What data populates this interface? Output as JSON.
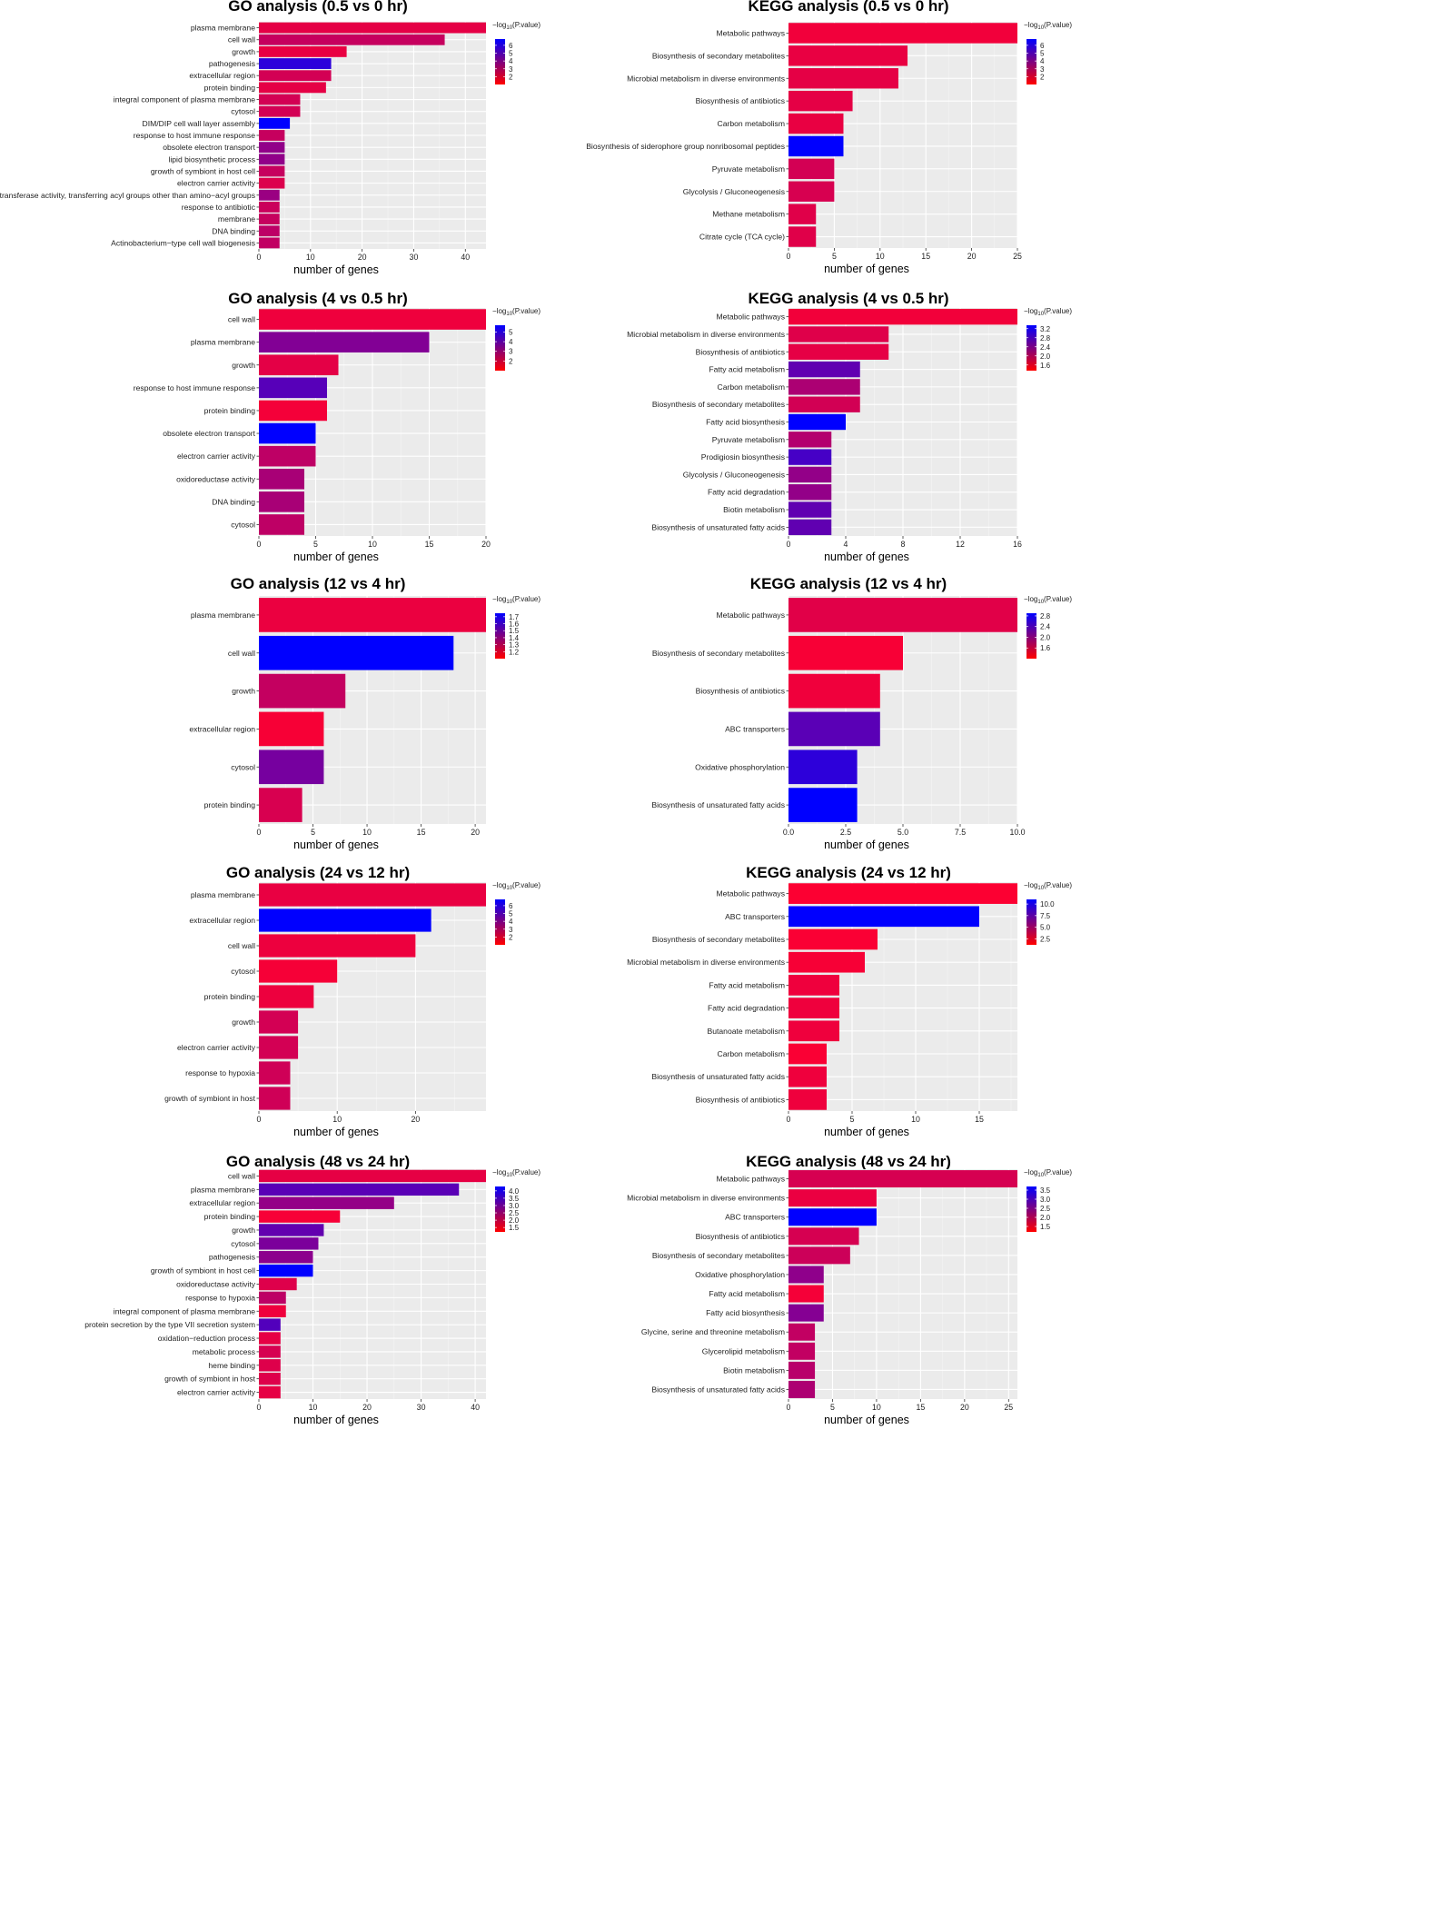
{
  "chart_data": [
    {
      "type": "bar",
      "orientation": "horizontal",
      "title": "GO analysis (0.5 vs 0 hr)",
      "xlabel": "number of genes",
      "xlim": [
        0,
        44
      ],
      "xticks": [
        0,
        10,
        20,
        30,
        40
      ],
      "legend": {
        "title": "−log10(P.value)",
        "range": [
          1,
          6.8
        ],
        "ticks": [
          "6",
          "5",
          "4",
          "3",
          "2"
        ],
        "tick_values": [
          6,
          5,
          4,
          3,
          2
        ],
        "position": "right"
      },
      "categories": [
        "plasma membrane",
        "cell wall",
        "growth",
        "pathogenesis",
        "extracellular region",
        "protein binding",
        "integral component of plasma membrane",
        "cytosol",
        "DIM/DIP cell wall layer assembly",
        "response to host immune response",
        "obsolete electron transport",
        "lipid biosynthetic process",
        "growth of symbiont in host cell",
        "electron carrier activity",
        "transferase activity, transferring acyl groups other than amino−acyl groups",
        "response to antibiotic",
        "membrane",
        "DNA binding",
        "Actinobacterium−type cell wall biogenesis"
      ],
      "values": [
        44,
        36,
        17,
        14,
        14,
        13,
        8,
        8,
        6,
        5,
        5,
        5,
        5,
        5,
        4,
        4,
        4,
        4,
        4
      ],
      "color_values": [
        1.6,
        2.3,
        1.5,
        5.8,
        2.0,
        1.6,
        2.0,
        2.0,
        6.8,
        2.3,
        3.5,
        3.5,
        2.3,
        1.8,
        3.3,
        2.2,
        2.3,
        2.5,
        2.4
      ]
    },
    {
      "type": "bar",
      "orientation": "horizontal",
      "title": "KEGG analysis (0.5 vs 0 hr)",
      "xlabel": "number of genes",
      "xlim": [
        0,
        25
      ],
      "xticks": [
        0,
        5,
        10,
        15,
        20,
        25
      ],
      "legend": {
        "title": "−log10(P.value)",
        "range": [
          1,
          6.8
        ],
        "ticks": [
          "6",
          "5",
          "4",
          "3",
          "2"
        ],
        "tick_values": [
          6,
          5,
          4,
          3,
          2
        ],
        "position": "right"
      },
      "categories": [
        "Metabolic pathways",
        "Biosynthesis of secondary metabolites",
        "Microbial metabolism in diverse environments",
        "Biosynthesis of antibiotics",
        "Carbon metabolism",
        "Biosynthesis of siderophore group nonribosomal peptides",
        "Pyruvate metabolism",
        "Glycolysis / Gluconeogenesis",
        "Methane metabolism",
        "Citrate cycle (TCA cycle)"
      ],
      "values": [
        25,
        13,
        12,
        7,
        6,
        6,
        5,
        5,
        3,
        3
      ],
      "color_values": [
        1.3,
        1.5,
        1.6,
        1.6,
        1.5,
        6.8,
        2.0,
        1.9,
        1.7,
        1.7
      ]
    },
    {
      "type": "bar",
      "orientation": "horizontal",
      "title": "GO analysis (4 vs 0.5 hr)",
      "xlabel": "number of genes",
      "xlim": [
        0,
        20
      ],
      "xticks": [
        0,
        5,
        10,
        15,
        20
      ],
      "legend": {
        "title": "−log10(P.value)",
        "range": [
          1,
          5.7
        ],
        "ticks": [
          "5",
          "4",
          "3",
          "2"
        ],
        "tick_values": [
          5,
          4,
          3,
          2
        ],
        "position": "right"
      },
      "categories": [
        "cell wall",
        "plasma membrane",
        "growth",
        "response to host immune response",
        "protein binding",
        "obsolete electron transport",
        "electron carrier activity",
        "oxidoreductase activity",
        "DNA binding",
        "cytosol"
      ],
      "values": [
        20,
        15,
        7,
        6,
        6,
        5,
        5,
        4,
        4,
        4
      ],
      "color_values": [
        1.3,
        3.3,
        1.5,
        4.1,
        1.2,
        5.7,
        2.2,
        2.6,
        2.6,
        2.2
      ]
    },
    {
      "type": "bar",
      "orientation": "horizontal",
      "title": "KEGG analysis (4 vs 0.5 hr)",
      "xlabel": "number of genes",
      "xlim": [
        0,
        16
      ],
      "xticks": [
        0,
        4,
        8,
        12,
        16
      ],
      "legend": {
        "title": "−log10(P.value)",
        "range": [
          1.35,
          3.35
        ],
        "ticks": [
          "3.2",
          "2.8",
          "2.4",
          "2.0",
          "1.6"
        ],
        "tick_values": [
          3.2,
          2.8,
          2.4,
          2.0,
          1.6
        ],
        "position": "right"
      },
      "categories": [
        "Metabolic pathways",
        "Microbial metabolism in diverse environments",
        "Biosynthesis of antibiotics",
        "Fatty acid metabolism",
        "Carbon metabolism",
        "Biosynthesis of secondary metabolites",
        "Fatty acid biosynthesis",
        "Pyruvate metabolism",
        "Prodigiosin biosynthesis",
        "Glycolysis / Gluconeogenesis",
        "Fatty acid degradation",
        "Biotin metabolism",
        "Biosynthesis of unsaturated fatty acids"
      ],
      "values": [
        16,
        7,
        7,
        5,
        5,
        5,
        4,
        3,
        3,
        3,
        3,
        3,
        3
      ],
      "color_values": [
        1.45,
        1.6,
        1.55,
        2.6,
        2.0,
        1.7,
        3.35,
        1.95,
        2.8,
        2.2,
        2.2,
        2.6,
        2.6
      ]
    },
    {
      "type": "bar",
      "orientation": "horizontal",
      "title": "GO analysis (12 vs 4 hr)",
      "xlabel": "number of genes",
      "xlim": [
        0,
        21
      ],
      "xticks": [
        0,
        5,
        10,
        15,
        20
      ],
      "legend": {
        "title": "−log10(P.value)",
        "range": [
          1.1,
          1.75
        ],
        "ticks": [
          "1.7",
          "1.6",
          "1.5",
          "1.4",
          "1.3",
          "1.2"
        ],
        "tick_values": [
          1.7,
          1.6,
          1.5,
          1.4,
          1.3,
          1.2
        ],
        "position": "right"
      },
      "categories": [
        "plasma membrane",
        "cell wall",
        "growth",
        "extracellular region",
        "cytosol",
        "protein binding"
      ],
      "values": [
        21,
        18,
        8,
        6,
        6,
        4
      ],
      "color_values": [
        1.15,
        1.75,
        1.25,
        1.12,
        1.45,
        1.2
      ]
    },
    {
      "type": "bar",
      "orientation": "horizontal",
      "title": "KEGG analysis (12 vs 4 hr)",
      "xlabel": "number of genes",
      "xlim": [
        0,
        10
      ],
      "xticks": [
        0,
        2.5,
        5,
        7.5,
        10
      ],
      "xtick_labels": [
        "0.0",
        "2.5",
        "5.0",
        "7.5",
        "10.0"
      ],
      "legend": {
        "title": "−log10(P.value)",
        "range": [
          1.2,
          2.9
        ],
        "ticks": [
          "2.8",
          "2.4",
          "2.0",
          "1.6"
        ],
        "tick_values": [
          2.8,
          2.4,
          2.0,
          1.6
        ],
        "position": "right"
      },
      "categories": [
        "Metabolic pathways",
        "Biosynthesis of secondary metabolites",
        "Biosynthesis of antibiotics",
        "ABC transporters",
        "Oxidative phosphorylation",
        "Biosynthesis of unsaturated fatty acids"
      ],
      "values": [
        10,
        5,
        4,
        4,
        3,
        3
      ],
      "color_values": [
        1.4,
        1.25,
        1.3,
        2.3,
        2.6,
        2.9
      ]
    },
    {
      "type": "bar",
      "orientation": "horizontal",
      "title": "GO analysis (24 vs 12 hr)",
      "xlabel": "number of genes",
      "xlim": [
        0,
        29
      ],
      "xticks": [
        0,
        10,
        20
      ],
      "legend": {
        "title": "−log10(P.value)",
        "range": [
          1,
          6.8
        ],
        "ticks": [
          "6",
          "5",
          "4",
          "3",
          "2"
        ],
        "tick_values": [
          6,
          5,
          4,
          3,
          2
        ],
        "position": "right"
      },
      "categories": [
        "plasma membrane",
        "extracellular region",
        "cell wall",
        "cytosol",
        "protein binding",
        "growth",
        "electron carrier activity",
        "response to hypoxia",
        "growth of symbiont in host"
      ],
      "values": [
        29,
        22,
        20,
        10,
        7,
        5,
        5,
        4,
        4
      ],
      "color_values": [
        1.5,
        6.8,
        1.4,
        1.2,
        1.4,
        2.0,
        2.0,
        2.1,
        2.1
      ]
    },
    {
      "type": "bar",
      "orientation": "horizontal",
      "title": "KEGG analysis (24 vs 12 hr)",
      "xlabel": "number of genes",
      "xlim": [
        0,
        18
      ],
      "xticks": [
        0,
        5,
        10,
        15
      ],
      "legend": {
        "title": "−log10(P.value)",
        "range": [
          1.2,
          11
        ],
        "ticks": [
          "10.0",
          "7.5",
          "5.0",
          "2.5"
        ],
        "tick_values": [
          10,
          7.5,
          5,
          2.5
        ],
        "position": "right"
      },
      "categories": [
        "Metabolic pathways",
        "ABC transporters",
        "Biosynthesis of secondary metabolites",
        "Microbial metabolism in diverse environments",
        "Fatty acid metabolism",
        "Fatty acid degradation",
        "Butanoate metabolism",
        "Carbon metabolism",
        "Biosynthesis of unsaturated fatty acids",
        "Biosynthesis of antibiotics"
      ],
      "values": [
        18,
        15,
        7,
        6,
        4,
        4,
        4,
        3,
        3,
        3
      ],
      "color_values": [
        1.3,
        11,
        1.4,
        1.5,
        1.8,
        1.8,
        1.8,
        1.4,
        1.8,
        1.8
      ]
    },
    {
      "type": "bar",
      "orientation": "horizontal",
      "title": "GO analysis (48 vs 24 hr)",
      "xlabel": "number of genes",
      "xlim": [
        0,
        42
      ],
      "xticks": [
        0,
        10,
        20,
        30,
        40
      ],
      "legend": {
        "title": "−log10(P.value)",
        "range": [
          1.2,
          4.3
        ],
        "ticks": [
          "4.0",
          "3.5",
          "3.0",
          "2.5",
          "2.0",
          "1.5"
        ],
        "tick_values": [
          4,
          3.5,
          3,
          2.5,
          2,
          1.5
        ],
        "position": "right"
      },
      "categories": [
        "cell wall",
        "plasma membrane",
        "extracellular region",
        "protein binding",
        "growth",
        "cytosol",
        "pathogenesis",
        "growth of symbiont in host cell",
        "oxidoreductase activity",
        "response to hypoxia",
        "integral component of plasma membrane",
        "protein secretion by the type VII secretion system",
        "oxidation−reduction process",
        "metabolic process",
        "heme binding",
        "growth of symbiont in host",
        "electron carrier activity"
      ],
      "values": [
        42,
        37,
        25,
        15,
        12,
        11,
        10,
        10,
        7,
        5,
        5,
        4,
        4,
        4,
        4,
        4,
        4
      ],
      "color_values": [
        1.5,
        3.2,
        2.5,
        1.3,
        3.1,
        2.8,
        2.6,
        4.3,
        1.6,
        2.0,
        1.4,
        3.3,
        1.5,
        1.7,
        1.6,
        1.6,
        1.5
      ]
    },
    {
      "type": "bar",
      "orientation": "horizontal",
      "title": "KEGG analysis (48 vs 24 hr)",
      "xlabel": "number of genes",
      "xlim": [
        0,
        26
      ],
      "xticks": [
        0,
        5,
        10,
        15,
        20,
        25
      ],
      "legend": {
        "title": "−log10(P.value)",
        "range": [
          1.2,
          3.7
        ],
        "ticks": [
          "3.5",
          "3.0",
          "2.5",
          "2.0",
          "1.5"
        ],
        "tick_values": [
          3.5,
          3,
          2.5,
          2,
          1.5
        ],
        "position": "right"
      },
      "categories": [
        "Metabolic pathways",
        "Microbial metabolism in diverse environments",
        "ABC transporters",
        "Biosynthesis of antibiotics",
        "Biosynthesis of secondary metabolites",
        "Oxidative phosphorylation",
        "Fatty acid metabolism",
        "Fatty acid biosynthesis",
        "Glycine, serine and threonine metabolism",
        "Glycerolipid metabolism",
        "Biotin metabolism",
        "Biosynthesis of unsaturated fatty acids"
      ],
      "values": [
        26,
        10,
        10,
        8,
        7,
        4,
        4,
        4,
        3,
        3,
        3,
        3
      ],
      "color_values": [
        1.6,
        1.4,
        3.7,
        1.6,
        1.7,
        2.3,
        1.3,
        2.4,
        1.8,
        1.8,
        1.9,
        2.0
      ]
    }
  ]
}
